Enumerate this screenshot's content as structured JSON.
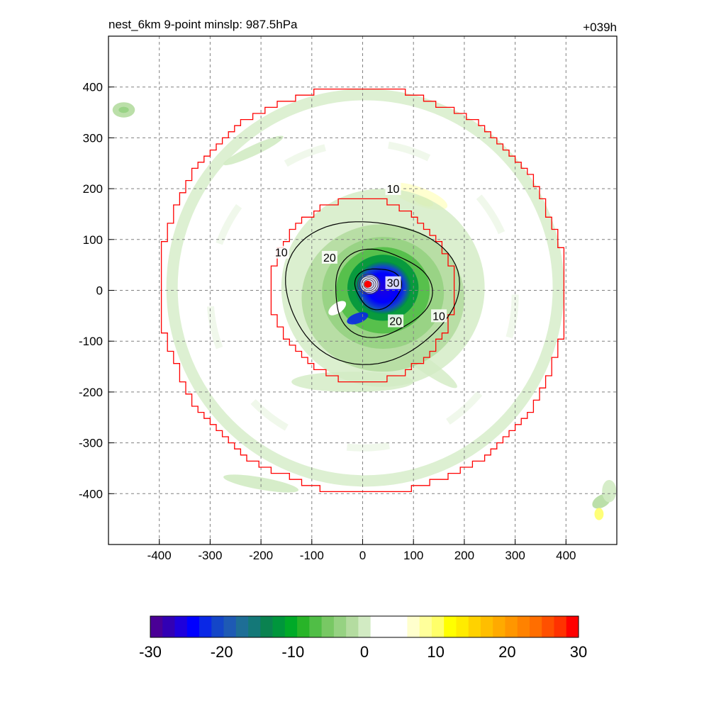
{
  "header": {
    "title_left": "nest_6km  9-point minslp: 987.5hPa",
    "title_right": "+039h"
  },
  "chart_data": {
    "type": "heatmap",
    "title": "nest_6km  9-point minslp: 987.5hPa",
    "subtitle": "+039h",
    "xlabel": "",
    "ylabel": "",
    "xlim": [
      -500,
      500
    ],
    "ylim": [
      -500,
      500
    ],
    "xticks": [
      -400,
      -300,
      -200,
      -100,
      0,
      100,
      200,
      300,
      400
    ],
    "yticks": [
      400,
      300,
      200,
      100,
      0,
      -100,
      -200,
      -300,
      -400
    ],
    "grid": true,
    "center_marker": {
      "x": 10,
      "y": 12,
      "color": "#ff0000"
    },
    "colorbar": {
      "range": [
        -30,
        30
      ],
      "ticks": [
        -30,
        -20,
        -10,
        0,
        10,
        20,
        30
      ],
      "colors": [
        "#4a0096",
        "#3200b4",
        "#1e00dc",
        "#0000ff",
        "#0a28e6",
        "#1446c8",
        "#1e5ab4",
        "#1e6e96",
        "#147878",
        "#0a8250",
        "#00963c",
        "#00aa28",
        "#28b428",
        "#50be46",
        "#78c864",
        "#96d282",
        "#b4dca0",
        "#d2ebc3",
        "#ffffff",
        "#ffffff",
        "#ffffff",
        "#ffffcd",
        "#ffff9b",
        "#ffff69",
        "#ffff00",
        "#ffeb00",
        "#ffd200",
        "#ffbe00",
        "#ffaa00",
        "#ff9600",
        "#ff8200",
        "#ff6e00",
        "#ff5000",
        "#ff3200",
        "#ff0000"
      ]
    },
    "contours": [
      {
        "label": "10",
        "level": 10
      },
      {
        "label": "20",
        "level": 20
      },
      {
        "label": "30",
        "level": 30
      }
    ],
    "rings": [
      {
        "name": "inner",
        "radius": 180
      },
      {
        "name": "outer",
        "radius": 400
      }
    ]
  }
}
